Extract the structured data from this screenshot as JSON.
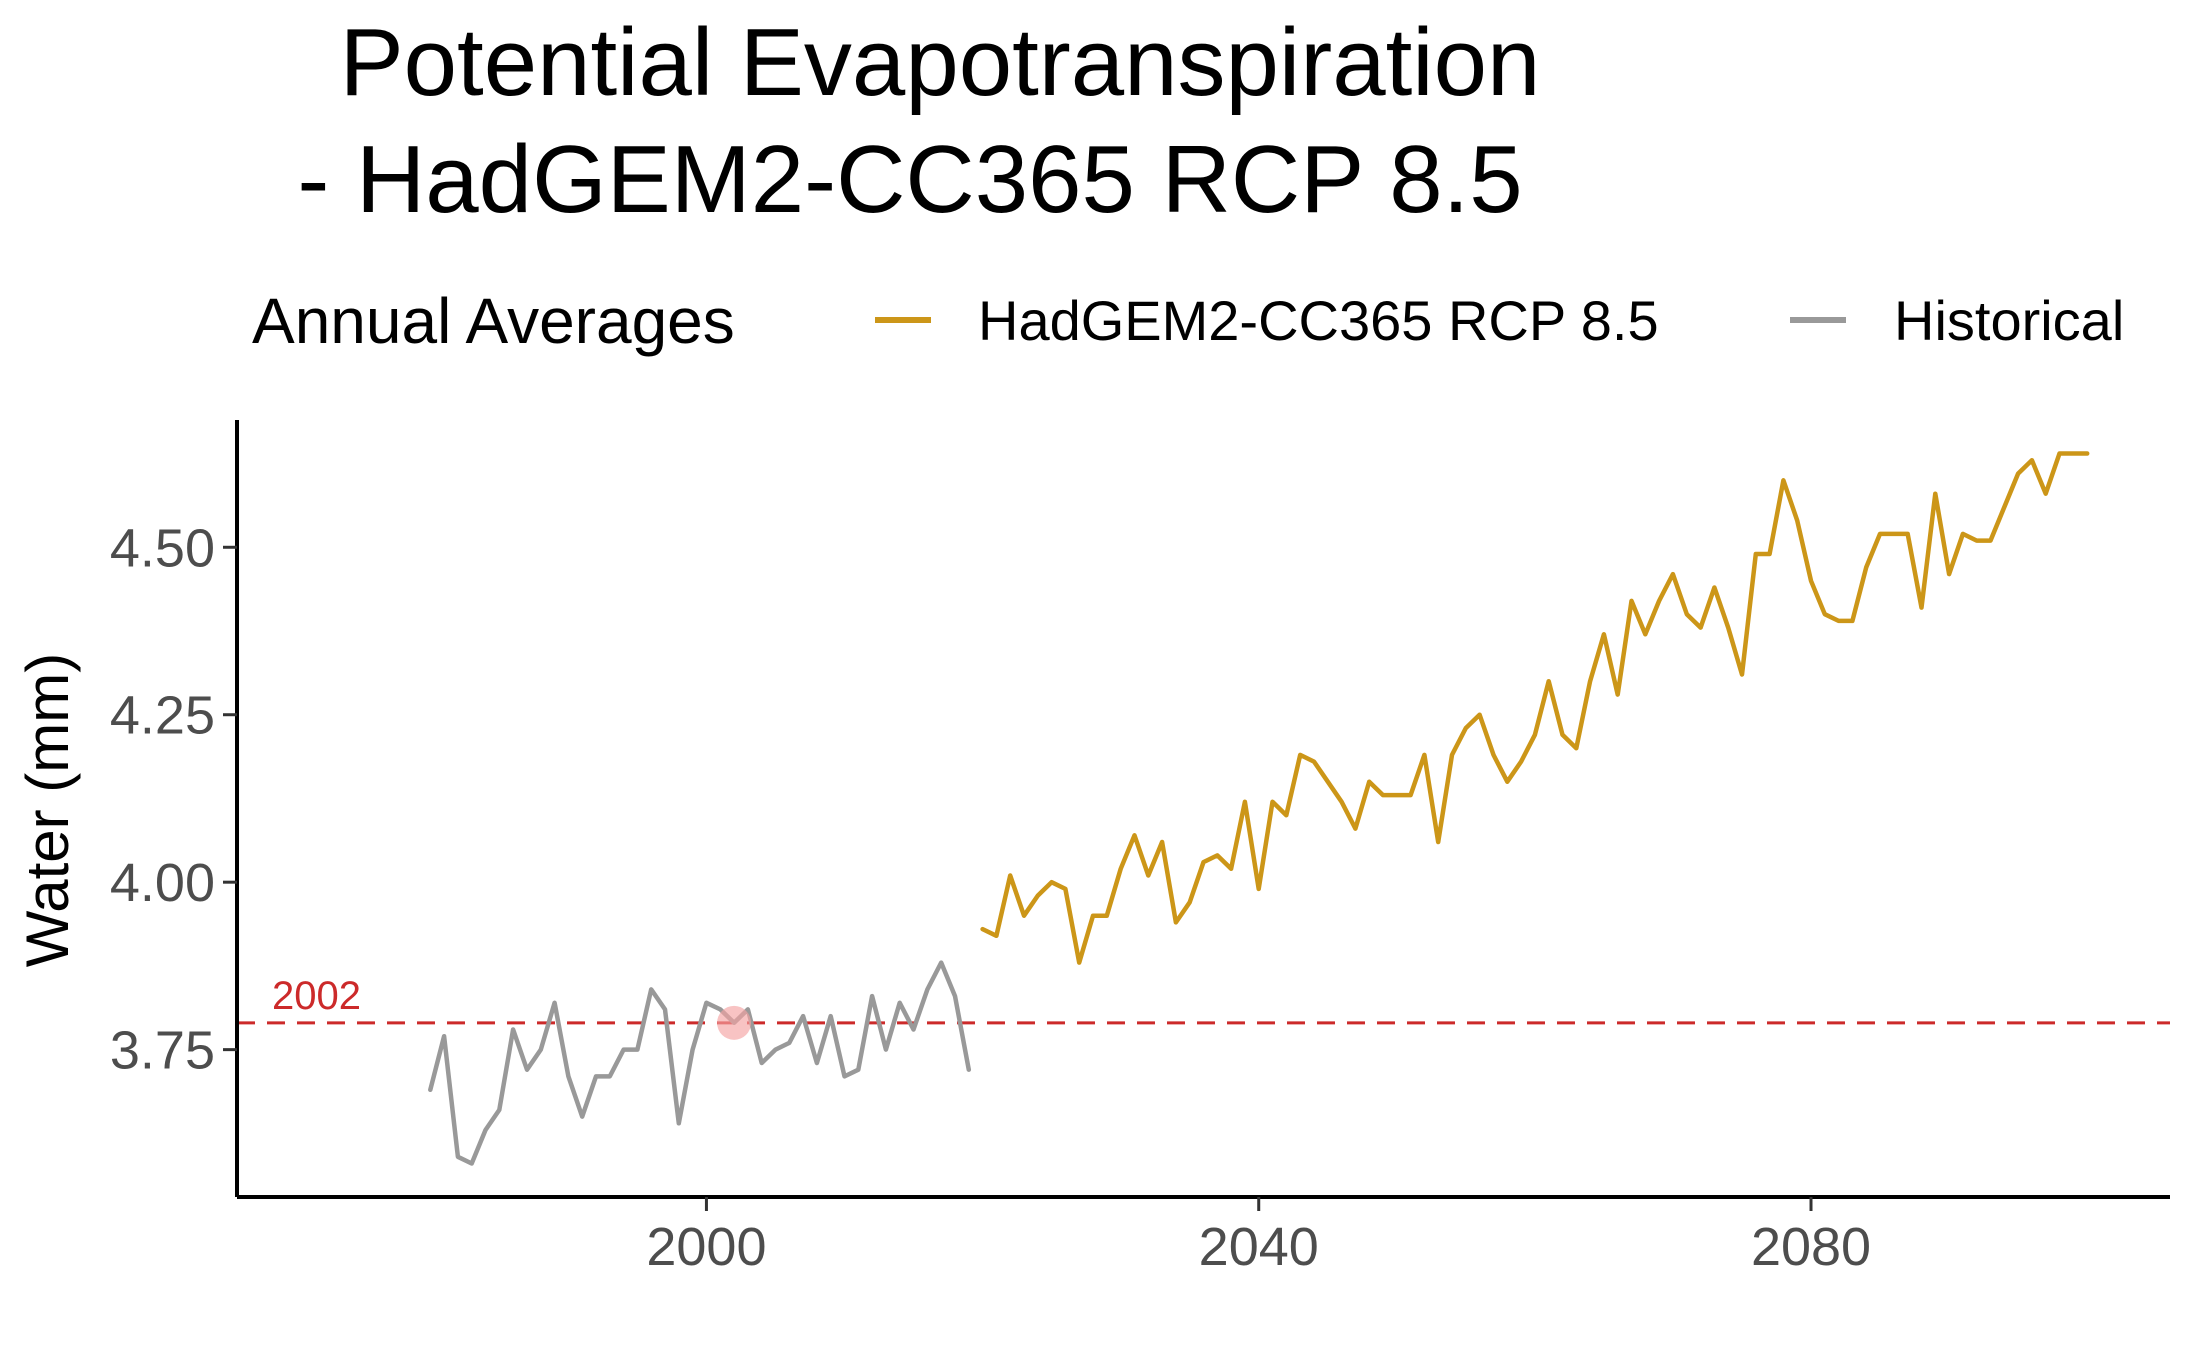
{
  "chart_data": {
    "type": "line",
    "title_lines": [
      "Potential Evapotranspiration",
      "- HadGEM2-CC365 RCP 8.5"
    ],
    "xlabel": "",
    "ylabel": "Water (mm)",
    "xlim": [
      1966,
      2106
    ],
    "ylim": [
      3.53,
      4.69
    ],
    "x_ticks": [
      2000,
      2040,
      2080
    ],
    "y_ticks": [
      3.75,
      4.0,
      4.25,
      4.5
    ],
    "y_tick_labels": [
      "3.75",
      "4.00",
      "4.25",
      "4.50"
    ],
    "grid": false,
    "legend": {
      "title": "Annual Averages",
      "position": "top",
      "entries": [
        {
          "label": "HadGEM2-CC365 RCP 8.5",
          "color": "#cc9618"
        },
        {
          "label": "Historical",
          "color": "#999999"
        }
      ]
    },
    "reference_line": {
      "y": 3.79,
      "label": "2002",
      "color": "#cc2a2a",
      "style": "dashed"
    },
    "highlight_point": {
      "x": 2002,
      "y": 3.79,
      "color": "#f4a3a3"
    },
    "series": [
      {
        "name": "Historical",
        "color": "#999999",
        "x": [
          1980,
          1981,
          1982,
          1983,
          1984,
          1985,
          1986,
          1987,
          1988,
          1989,
          1990,
          1991,
          1992,
          1993,
          1994,
          1995,
          1996,
          1997,
          1998,
          1999,
          2000,
          2001,
          2002,
          2003,
          2004,
          2005,
          2006,
          2007,
          2008,
          2009,
          2010,
          2011,
          2012,
          2013,
          2014,
          2015,
          2016,
          2017,
          2018,
          2019
        ],
        "y": [
          3.69,
          3.77,
          3.59,
          3.58,
          3.63,
          3.66,
          3.78,
          3.72,
          3.75,
          3.82,
          3.71,
          3.65,
          3.71,
          3.71,
          3.75,
          3.75,
          3.84,
          3.81,
          3.64,
          3.75,
          3.82,
          3.81,
          3.79,
          3.81,
          3.73,
          3.75,
          3.76,
          3.8,
          3.73,
          3.8,
          3.71,
          3.72,
          3.83,
          3.75,
          3.82,
          3.78,
          3.84,
          3.88,
          3.83,
          3.72
        ]
      },
      {
        "name": "HadGEM2-CC365 RCP 8.5",
        "color": "#cc9618",
        "x": [
          2020,
          2021,
          2022,
          2023,
          2024,
          2025,
          2026,
          2027,
          2028,
          2029,
          2030,
          2031,
          2032,
          2033,
          2034,
          2035,
          2036,
          2037,
          2038,
          2039,
          2040,
          2041,
          2042,
          2043,
          2044,
          2045,
          2046,
          2047,
          2048,
          2049,
          2050,
          2051,
          2052,
          2053,
          2054,
          2055,
          2056,
          2057,
          2058,
          2059,
          2060,
          2061,
          2062,
          2063,
          2064,
          2065,
          2066,
          2067,
          2068,
          2069,
          2070,
          2071,
          2072,
          2073,
          2074,
          2075,
          2076,
          2077,
          2078,
          2079,
          2080,
          2081,
          2082,
          2083,
          2084,
          2085,
          2086,
          2087,
          2088,
          2089,
          2090,
          2091,
          2092,
          2093,
          2094,
          2095,
          2096,
          2097,
          2098,
          2099,
          2100
        ],
        "y": [
          3.93,
          3.92,
          4.01,
          3.95,
          3.98,
          4.0,
          3.99,
          3.88,
          3.95,
          3.95,
          4.02,
          4.07,
          4.01,
          4.06,
          3.94,
          3.97,
          4.03,
          4.04,
          4.02,
          4.12,
          3.99,
          4.12,
          4.1,
          4.19,
          4.18,
          4.15,
          4.12,
          4.08,
          4.15,
          4.13,
          4.13,
          4.13,
          4.19,
          4.06,
          4.19,
          4.23,
          4.25,
          4.19,
          4.15,
          4.18,
          4.22,
          4.3,
          4.22,
          4.2,
          4.3,
          4.37,
          4.28,
          4.42,
          4.37,
          4.42,
          4.46,
          4.4,
          4.38,
          4.44,
          4.38,
          4.31,
          4.49,
          4.49,
          4.6,
          4.54,
          4.45,
          4.4,
          4.39,
          4.39,
          4.47,
          4.52,
          4.52,
          4.52,
          4.41,
          4.58,
          4.46,
          4.52,
          4.51,
          4.51,
          4.56,
          4.61,
          4.63,
          4.58,
          4.64,
          4.64,
          4.64
        ]
      }
    ]
  }
}
